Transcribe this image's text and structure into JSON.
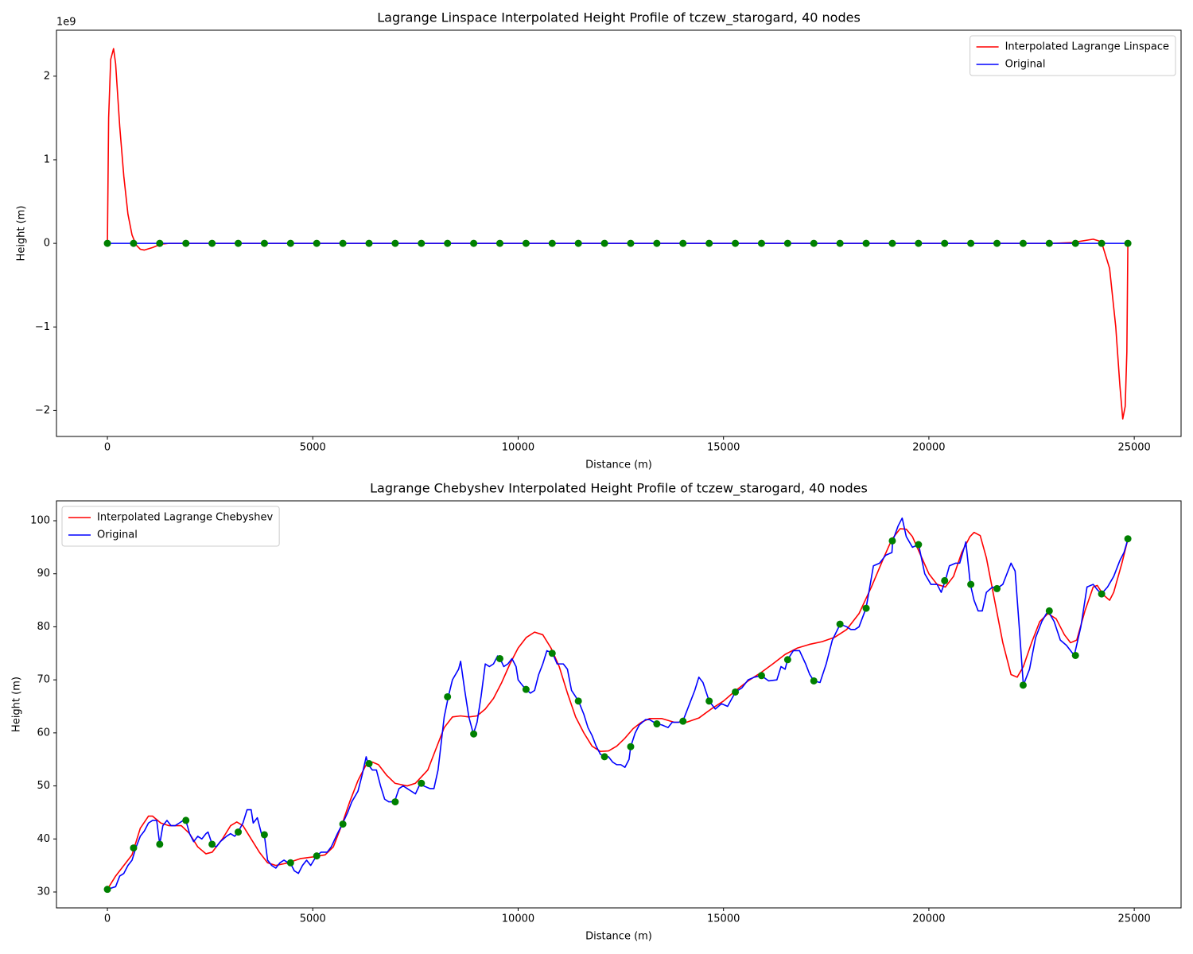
{
  "chart_data": [
    {
      "type": "line",
      "title": "Lagrange Linspace Interpolated Height Profile of tczew_starogard, 40 nodes",
      "xlabel": "Distance (m)",
      "ylabel": "Height (m)",
      "y_offset_label": "1e9",
      "xlim": [
        -1240,
        26140
      ],
      "ylim": [
        -2310000000,
        2550000000
      ],
      "xticks": [
        0,
        5000,
        10000,
        15000,
        20000,
        25000
      ],
      "yticks": [
        {
          "value": -2000000000,
          "label": "−2"
        },
        {
          "value": -1000000000,
          "label": "−1"
        },
        {
          "value": 0,
          "label": "0"
        },
        {
          "value": 1000000000,
          "label": "1"
        },
        {
          "value": 2000000000,
          "label": "2"
        }
      ],
      "legend": "upper right",
      "series": [
        {
          "name": "Interpolated Lagrange Linspace",
          "color": "#ff0000",
          "x": [
            0,
            30,
            80,
            150,
            200,
            300,
            400,
            500,
            600,
            700,
            800,
            900,
            1100,
            1300,
            1500,
            5000,
            10000,
            15000,
            20000,
            23000,
            23500,
            24000,
            24200,
            24400,
            24550,
            24650,
            24720,
            24780,
            24820,
            24845
          ],
          "values": [
            0,
            1500000000,
            2200000000,
            2330000000,
            2150000000,
            1400000000,
            800000000,
            350000000,
            100000000,
            -20000000,
            -70000000,
            -80000000,
            -50000000,
            -10000000,
            0,
            0,
            0,
            0,
            0,
            0,
            10000000,
            50000000,
            20000000,
            -300000000,
            -1000000000,
            -1700000000,
            -2100000000,
            -1950000000,
            -1300000000,
            0
          ]
        },
        {
          "name": "Original",
          "color": "#0000ff",
          "x": [
            0,
            637,
            1274,
            1911,
            2548,
            3185,
            3822,
            4459,
            5096,
            5733,
            6370,
            7007,
            7644,
            8281,
            8918,
            9555,
            10192,
            10829,
            11466,
            12103,
            12740,
            13377,
            14014,
            14651,
            15288,
            15925,
            16562,
            17199,
            17836,
            18473,
            19110,
            19747,
            20384,
            21021,
            21658,
            22295,
            22932,
            23569,
            24206,
            24845
          ],
          "values": [
            30.5,
            38.3,
            39,
            43.5,
            39,
            41.3,
            40.8,
            35.5,
            36.8,
            42.8,
            54.2,
            47,
            50.5,
            66.8,
            59.8,
            74,
            68.2,
            75,
            66,
            55.5,
            57.4,
            61.7,
            62.2,
            66,
            67.7,
            70.8,
            73.8,
            69.8,
            80.5,
            83.5,
            96.2,
            95.5,
            88.7,
            88,
            87.2,
            69,
            83,
            74.6,
            86.2,
            96.6
          ]
        },
        {
          "color": "#008000",
          "marker": "o",
          "x": [
            0,
            637,
            1274,
            1911,
            2548,
            3185,
            3822,
            4459,
            5096,
            5733,
            6370,
            7007,
            7644,
            8281,
            8918,
            9555,
            10192,
            10829,
            11466,
            12103,
            12740,
            13377,
            14014,
            14651,
            15288,
            15925,
            16562,
            17199,
            17836,
            18473,
            19110,
            19747,
            20384,
            21021,
            21658,
            22295,
            22932,
            23569,
            24206,
            24845
          ],
          "values": [
            30.5,
            38.3,
            39,
            43.5,
            39,
            41.3,
            40.8,
            35.5,
            36.8,
            42.8,
            54.2,
            47,
            50.5,
            66.8,
            59.8,
            74,
            68.2,
            75,
            66,
            55.5,
            57.4,
            61.7,
            62.2,
            66,
            67.7,
            70.8,
            73.8,
            69.8,
            80.5,
            83.5,
            96.2,
            95.5,
            88.7,
            88,
            87.2,
            69,
            83,
            74.6,
            86.2,
            96.6
          ]
        }
      ]
    },
    {
      "type": "line",
      "title": "Lagrange Chebyshev Interpolated Height Profile of tczew_starogard, 40 nodes",
      "xlabel": "Distance (m)",
      "ylabel": "Height (m)",
      "xlim": [
        -1240,
        26140
      ],
      "ylim": [
        27,
        103.75
      ],
      "xticks": [
        0,
        5000,
        10000,
        15000,
        20000,
        25000
      ],
      "yticks": [
        30,
        40,
        50,
        60,
        70,
        80,
        90,
        100
      ],
      "legend": "upper left",
      "series": [
        {
          "name": "Interpolated Lagrange Chebyshev",
          "color": "#ff0000",
          "x": [
            0,
            200,
            400,
            600,
            800,
            1000,
            1100,
            1300,
            1500,
            1800,
            2000,
            2200,
            2400,
            2550,
            2800,
            3000,
            3150,
            3300,
            3500,
            3700,
            3900,
            4100,
            4400,
            4700,
            5000,
            5300,
            5500,
            5700,
            5900,
            6100,
            6300,
            6450,
            6600,
            6800,
            7000,
            7300,
            7500,
            7800,
            8000,
            8200,
            8400,
            8600,
            8800,
            9000,
            9200,
            9400,
            9600,
            9800,
            10000,
            10200,
            10400,
            10600,
            10800,
            11000,
            11200,
            11400,
            11600,
            11800,
            12000,
            12200,
            12400,
            12600,
            12800,
            13000,
            13200,
            13500,
            13800,
            14100,
            14400,
            14700,
            15000,
            15300,
            15600,
            15900,
            16200,
            16500,
            16800,
            17100,
            17400,
            17700,
            18000,
            18300,
            18600,
            18900,
            19100,
            19300,
            19450,
            19600,
            19800,
            20000,
            20200,
            20400,
            20600,
            20800,
            21000,
            21100,
            21250,
            21400,
            21600,
            21800,
            22000,
            22150,
            22300,
            22500,
            22700,
            22900,
            23100,
            23300,
            23450,
            23600,
            23800,
            24000,
            24100,
            24250,
            24400,
            24500,
            24700,
            24845
          ],
          "values": [
            30.5,
            33,
            35,
            37,
            42,
            44.3,
            44.3,
            43,
            42.5,
            42.5,
            41,
            38.5,
            37.2,
            37.5,
            40,
            42.5,
            43.2,
            42.5,
            40,
            37.5,
            35.5,
            35,
            35.5,
            36.3,
            36.6,
            37,
            38.5,
            42.5,
            47,
            51,
            54,
            54.5,
            54,
            52,
            50.5,
            50,
            50.5,
            53,
            57,
            61,
            63,
            63.2,
            63,
            63.2,
            64.5,
            66.5,
            69.5,
            73,
            76,
            78,
            79,
            78.5,
            76,
            72.5,
            67.5,
            63,
            60,
            57.5,
            56.5,
            56.6,
            57.5,
            59,
            60.8,
            62,
            62.7,
            62.7,
            62,
            62,
            62.8,
            64.5,
            66,
            68,
            69.8,
            71.3,
            73,
            74.8,
            76,
            76.7,
            77.2,
            78,
            79.5,
            82.5,
            87.5,
            93,
            96.5,
            98.5,
            98.4,
            97,
            93.5,
            90,
            88,
            87.5,
            89.5,
            94,
            97,
            97.8,
            97.2,
            93,
            85,
            77,
            71,
            70.5,
            72.5,
            77,
            81,
            82.5,
            81.5,
            78.5,
            77,
            77.5,
            83,
            87.5,
            87.8,
            86,
            85,
            86.5,
            92,
            96.5
          ]
        },
        {
          "name": "Original",
          "color": "#0000ff",
          "x": [
            0,
            200,
            300,
            400,
            500,
            600,
            700,
            800,
            900,
            1000,
            1100,
            1200,
            1274,
            1350,
            1450,
            1550,
            1650,
            1750,
            1850,
            1910,
            2000,
            2100,
            2200,
            2300,
            2400,
            2450,
            2550,
            2650,
            2750,
            2900,
            3000,
            3100,
            3180,
            3300,
            3400,
            3500,
            3550,
            3650,
            3750,
            3820,
            3900,
            4000,
            4100,
            4200,
            4300,
            4400,
            4450,
            4550,
            4650,
            4750,
            4850,
            4950,
            5090,
            5200,
            5350,
            5450,
            5600,
            5720,
            5850,
            5950,
            6100,
            6200,
            6300,
            6350,
            6450,
            6550,
            6650,
            6750,
            6850,
            6990,
            7100,
            7200,
            7300,
            7400,
            7500,
            7620,
            7700,
            7850,
            7950,
            8050,
            8200,
            8300,
            8400,
            8550,
            8600,
            8700,
            8800,
            8910,
            9000,
            9100,
            9200,
            9300,
            9400,
            9500,
            9560,
            9650,
            9750,
            9850,
            9950,
            10000,
            10100,
            10190,
            10300,
            10400,
            10500,
            10600,
            10700,
            10840,
            10950,
            11100,
            11200,
            11300,
            11470,
            11600,
            11700,
            11800,
            11900,
            12000,
            12100,
            12200,
            12300,
            12400,
            12500,
            12600,
            12700,
            12740,
            12850,
            12950,
            13100,
            13200,
            13370,
            13500,
            13650,
            13750,
            13900,
            14010,
            14100,
            14200,
            14300,
            14400,
            14500,
            14650,
            14800,
            14950,
            15100,
            15290,
            15450,
            15600,
            15750,
            15920,
            16100,
            16300,
            16400,
            16500,
            16560,
            16700,
            16850,
            17000,
            17100,
            17200,
            17350,
            17500,
            17650,
            17840,
            18000,
            18100,
            18200,
            18300,
            18470,
            18550,
            18650,
            18800,
            18950,
            19100,
            19120,
            19250,
            19350,
            19450,
            19600,
            19750,
            19900,
            20050,
            20200,
            20300,
            20400,
            20500,
            20650,
            20750,
            20900,
            21010,
            21100,
            21200,
            21300,
            21400,
            21550,
            21650,
            21800,
            21900,
            22000,
            22100,
            22200,
            22300,
            22450,
            22600,
            22750,
            22900,
            23050,
            23200,
            23350,
            23540,
            23700,
            23850,
            24000,
            24100,
            24200,
            24350,
            24500,
            24650,
            24750,
            24845
          ],
          "values": [
            30.5,
            31,
            33,
            33.5,
            35,
            36,
            38.5,
            40.5,
            41.5,
            43,
            43.5,
            43.5,
            39,
            42.5,
            43.5,
            42.5,
            42.5,
            43,
            43.5,
            43.5,
            41,
            39.5,
            40.5,
            40,
            41,
            41.3,
            39,
            38.5,
            39.5,
            40.5,
            41,
            40.5,
            41.3,
            43,
            45.5,
            45.5,
            43,
            44,
            41,
            40.8,
            36,
            35,
            34.5,
            35.5,
            36,
            35.5,
            35.5,
            34,
            33.5,
            35,
            36,
            35,
            36.8,
            37.5,
            37.5,
            38.5,
            41,
            42.8,
            45,
            47,
            49,
            52,
            55.5,
            54,
            53,
            53,
            50,
            47.5,
            47,
            47,
            49.5,
            50,
            49.5,
            49,
            48.5,
            50.5,
            50,
            49.5,
            49.5,
            53,
            63,
            66.8,
            70,
            72,
            73.5,
            68,
            63,
            59.8,
            62,
            67,
            73,
            72.5,
            73,
            74.5,
            74,
            72.5,
            73,
            74,
            72.5,
            70,
            69,
            68.2,
            67.5,
            68,
            71,
            73,
            75.5,
            75,
            73,
            73,
            72,
            68,
            66,
            63.5,
            61,
            59.5,
            57.5,
            56,
            55.5,
            55.5,
            54.5,
            54,
            54,
            53.5,
            55,
            57.4,
            60,
            61.5,
            62.5,
            62.5,
            61.7,
            61.5,
            61,
            62,
            62,
            62.2,
            64,
            66,
            68,
            70.5,
            69.5,
            66,
            64.5,
            65.5,
            65,
            67.7,
            68.5,
            70,
            70.5,
            70.8,
            69.8,
            70,
            72.5,
            72,
            73.8,
            75.5,
            75.5,
            73,
            71,
            69.8,
            69.5,
            73,
            77.5,
            80.5,
            80,
            79.5,
            79.5,
            80,
            83.5,
            87,
            91.5,
            92,
            93.5,
            94,
            96.2,
            99,
            100.5,
            97,
            95,
            95.5,
            90,
            88,
            88,
            86.5,
            88.7,
            91.5,
            92,
            92,
            96,
            88,
            85,
            83,
            83,
            86.5,
            87.5,
            87.2,
            88,
            90,
            92,
            90.5,
            80,
            69,
            72,
            78,
            81,
            83,
            81,
            77.5,
            76.5,
            74.6,
            80,
            87.5,
            88,
            87,
            86.2,
            87.5,
            89.5,
            92.5,
            94,
            96.5
          ]
        },
        {
          "color": "#008000",
          "marker": "o",
          "x": [
            0,
            637,
            1274,
            1911,
            2548,
            3185,
            3822,
            4459,
            5096,
            5733,
            6370,
            7007,
            7644,
            8281,
            8918,
            9555,
            10192,
            10829,
            11466,
            12103,
            12740,
            13377,
            14014,
            14651,
            15288,
            15925,
            16562,
            17199,
            17836,
            18473,
            19110,
            19747,
            20384,
            21021,
            21658,
            22295,
            22932,
            23569,
            24206,
            24845
          ],
          "values": [
            30.5,
            38.3,
            39,
            43.5,
            39,
            41.3,
            40.8,
            35.5,
            36.8,
            42.8,
            54.2,
            47,
            50.5,
            66.8,
            59.8,
            74,
            68.2,
            75,
            66,
            55.5,
            57.4,
            61.7,
            62.2,
            66,
            67.7,
            70.8,
            73.8,
            69.8,
            80.5,
            83.5,
            96.2,
            95.5,
            88.7,
            88,
            87.2,
            69,
            83,
            74.6,
            86.2,
            96.6
          ]
        }
      ]
    }
  ]
}
